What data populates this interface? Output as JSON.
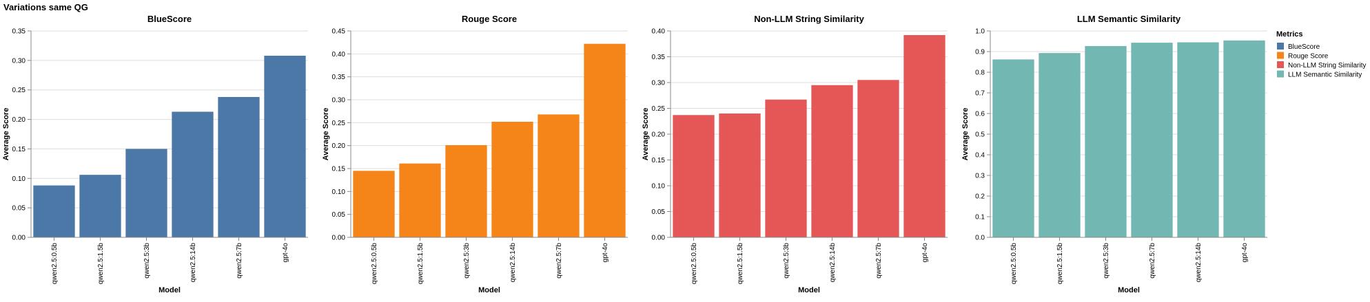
{
  "figure": {
    "title": "Variations same QG"
  },
  "legend": {
    "title": "Metrics",
    "placement": "right",
    "entries": [
      {
        "label": "BlueScore",
        "color": "#4c78a8"
      },
      {
        "label": "Rouge Score",
        "color": "#f58518"
      },
      {
        "label": "Non-LLM String Similarity",
        "color": "#e45756"
      },
      {
        "label": "LLM Semantic Similarity",
        "color": "#72b7b2"
      }
    ]
  },
  "chart_data": [
    {
      "type": "bar",
      "title": "BlueScore",
      "xlabel": "Model",
      "ylabel": "Average Score",
      "color": "#4c78a8",
      "grid": true,
      "ylim": [
        0,
        0.35
      ],
      "yticks": [
        "0.00",
        "0.05",
        "0.10",
        "0.15",
        "0.20",
        "0.25",
        "0.30",
        "0.35"
      ],
      "categories": [
        "qwen2.5:0.5b",
        "qwen2.5:1.5b",
        "qwen2.5:3b",
        "qwen2.5:14b",
        "qwen2.5:7b",
        "gpt-4o"
      ],
      "values": [
        0.088,
        0.106,
        0.15,
        0.213,
        0.238,
        0.308
      ]
    },
    {
      "type": "bar",
      "title": "Rouge Score",
      "xlabel": "Model",
      "ylabel": "Average Score",
      "color": "#f58518",
      "grid": true,
      "ylim": [
        0,
        0.45
      ],
      "yticks": [
        "0.00",
        "0.05",
        "0.10",
        "0.15",
        "0.20",
        "0.25",
        "0.30",
        "0.35",
        "0.40",
        "0.45"
      ],
      "categories": [
        "qwen2.5:0.5b",
        "qwen2.5:1.5b",
        "qwen2.5:3b",
        "qwen2.5:14b",
        "qwen2.5:7b",
        "gpt-4o"
      ],
      "values": [
        0.145,
        0.161,
        0.201,
        0.252,
        0.268,
        0.422
      ]
    },
    {
      "type": "bar",
      "title": "Non-LLM String Similarity",
      "xlabel": "Model",
      "ylabel": "Average Score",
      "color": "#e45756",
      "grid": true,
      "ylim": [
        0,
        0.4
      ],
      "yticks": [
        "0.00",
        "0.05",
        "0.10",
        "0.15",
        "0.20",
        "0.25",
        "0.30",
        "0.35",
        "0.40"
      ],
      "categories": [
        "qwen2.5:0.5b",
        "qwen2.5:1.5b",
        "qwen2.5:3b",
        "qwen2.5:14b",
        "qwen2.5:7b",
        "gpt-4o"
      ],
      "values": [
        0.237,
        0.24,
        0.267,
        0.295,
        0.305,
        0.392
      ]
    },
    {
      "type": "bar",
      "title": "LLM Semantic Similarity",
      "xlabel": "Model",
      "ylabel": "Average Score",
      "color": "#72b7b2",
      "grid": true,
      "ylim": [
        0,
        1.0
      ],
      "yticks": [
        "0.0",
        "0.1",
        "0.2",
        "0.3",
        "0.4",
        "0.5",
        "0.6",
        "0.7",
        "0.8",
        "0.9",
        "1.0"
      ],
      "categories": [
        "qwen2.5:0.5b",
        "qwen2.5:1.5b",
        "qwen2.5:3b",
        "qwen2.5:7b",
        "qwen2.5:14b",
        "gpt-4o"
      ],
      "values": [
        0.862,
        0.893,
        0.927,
        0.943,
        0.945,
        0.954
      ]
    }
  ]
}
